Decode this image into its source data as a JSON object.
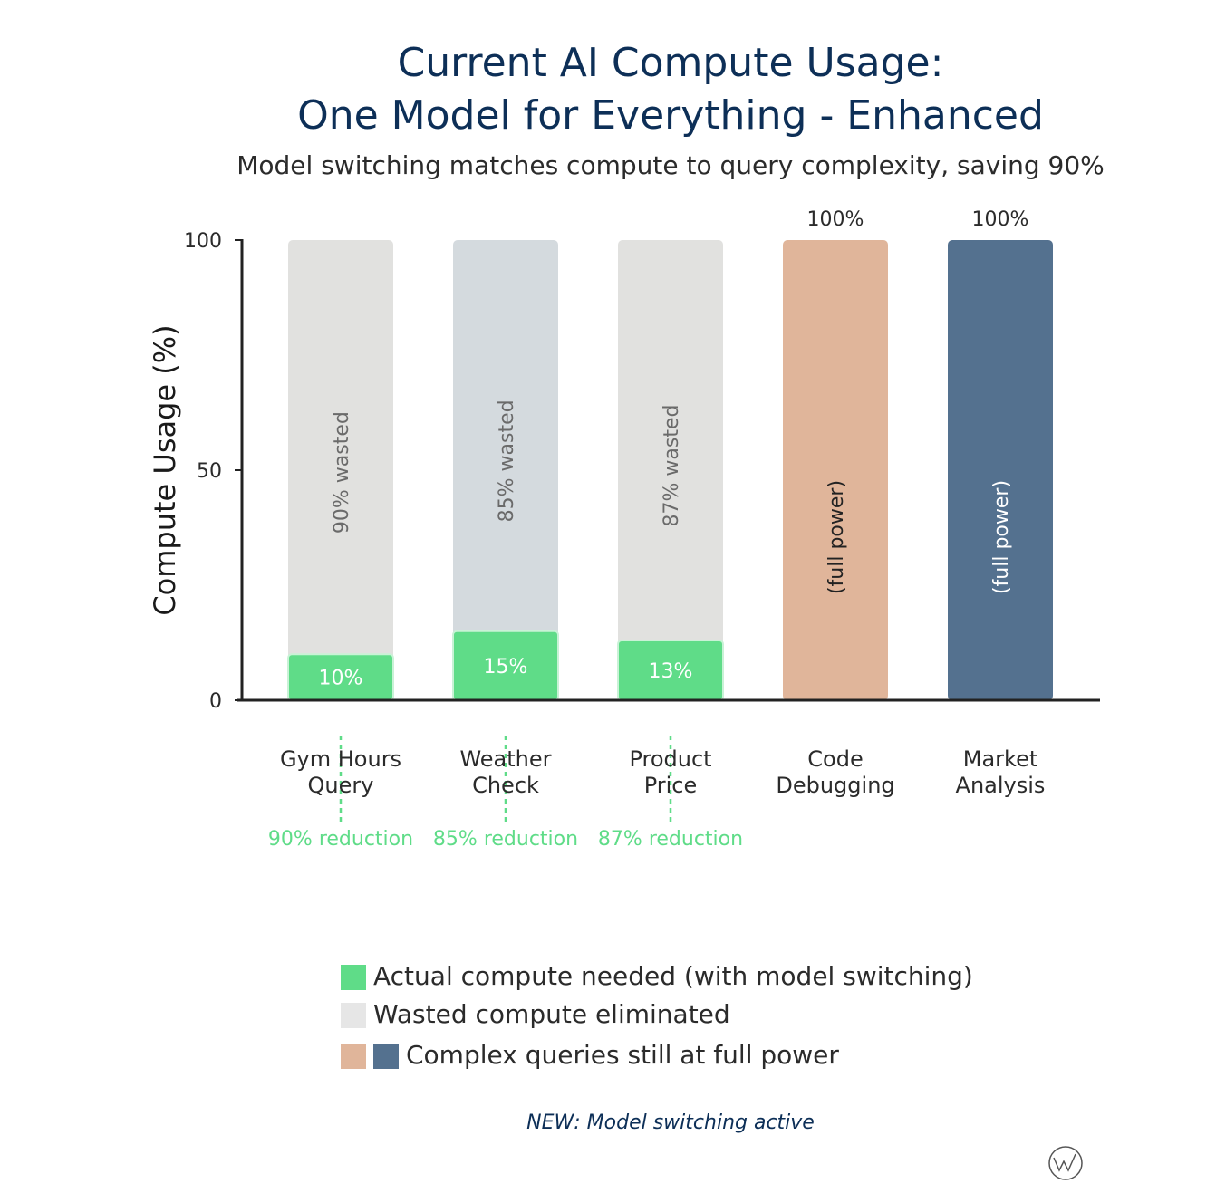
{
  "chart_data": {
    "type": "bar",
    "title_line1": "Current AI Compute Usage:",
    "title_line2": "One Model for Everything - Enhanced",
    "subtitle": "Model switching matches compute to query complexity, saving 90%",
    "ylabel": "Compute Usage (%)",
    "ylim": [
      0,
      100
    ],
    "yticks": [
      "0",
      "50",
      "100"
    ],
    "categories": [
      {
        "line1": "Gym Hours",
        "line2": "Query"
      },
      {
        "line1": "Weather",
        "line2": "Check"
      },
      {
        "line1": "Product",
        "line2": "Price"
      },
      {
        "line1": "Code",
        "line2": "Debugging"
      },
      {
        "line1": "Market",
        "line2": "Analysis"
      }
    ],
    "bars": [
      {
        "kind": "switched",
        "actual": 10,
        "actual_label": "10%",
        "wasted_label": "90% wasted",
        "reduction_label": "90% reduction"
      },
      {
        "kind": "switched",
        "actual": 15,
        "actual_label": "15%",
        "wasted_label": "85% wasted",
        "reduction_label": "85% reduction"
      },
      {
        "kind": "switched",
        "actual": 13,
        "actual_label": "13%",
        "wasted_label": "87% wasted",
        "reduction_label": "87% reduction"
      },
      {
        "kind": "full",
        "actual": 100,
        "top_label": "100%",
        "inner_label": "(full power)"
      },
      {
        "kind": "full",
        "actual": 100,
        "top_label": "100%",
        "inner_label": "(full power)"
      }
    ],
    "colors": {
      "actual": "#5fdc88",
      "wasted": [
        "#e1e1df",
        "#d4dade",
        "#e1e1df"
      ],
      "full": [
        "#e0b59a",
        "#54718f"
      ],
      "full_text": [
        "#222222",
        "#ffffff"
      ],
      "legend_wasted": "#e6e6e6"
    },
    "legend": {
      "position": "bottom",
      "items": [
        {
          "text": "Actual compute needed (with model switching)",
          "swatches": [
            "#5fdc88"
          ]
        },
        {
          "text": "Wasted compute eliminated",
          "swatches": [
            "#e6e6e6"
          ]
        },
        {
          "text": "Complex queries still at full power",
          "swatches": [
            "#e0b59a",
            "#54718f"
          ]
        }
      ]
    },
    "note": "NEW: Model switching active"
  }
}
